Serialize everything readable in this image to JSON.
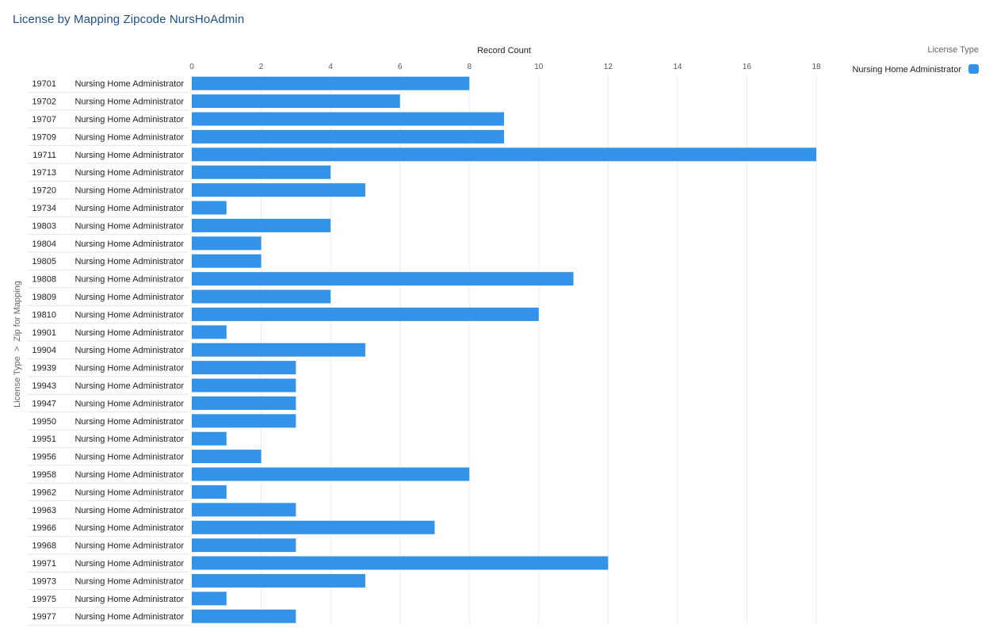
{
  "chart_data": {
    "type": "bar",
    "orientation": "horizontal",
    "title": "License by Mapping Zipcode NursHoAdmin",
    "xlabel": "Record Count",
    "ylabel": "License Type  >  Zip for Mapping",
    "xlim": [
      0,
      18
    ],
    "xticks": [
      0,
      2,
      4,
      6,
      8,
      10,
      12,
      14,
      16,
      18
    ],
    "grid": true,
    "legend": {
      "title": "License Type",
      "position": "top-right",
      "items": [
        {
          "label": "Nursing Home Administrator",
          "color": "#3393e8"
        }
      ]
    },
    "series": [
      {
        "name": "Nursing Home Administrator",
        "color": "#3393e8",
        "categories": [
          "19701",
          "19702",
          "19707",
          "19709",
          "19711",
          "19713",
          "19720",
          "19734",
          "19803",
          "19804",
          "19805",
          "19808",
          "19809",
          "19810",
          "19901",
          "19904",
          "19939",
          "19943",
          "19947",
          "19950",
          "19951",
          "19956",
          "19958",
          "19962",
          "19963",
          "19966",
          "19968",
          "19971",
          "19973",
          "19975",
          "19977"
        ],
        "values": [
          8,
          6,
          9,
          9,
          18,
          4,
          5,
          1,
          4,
          2,
          2,
          11,
          4,
          10,
          1,
          5,
          3,
          3,
          3,
          3,
          1,
          2,
          8,
          1,
          3,
          7,
          3,
          12,
          5,
          1,
          3
        ]
      }
    ]
  }
}
